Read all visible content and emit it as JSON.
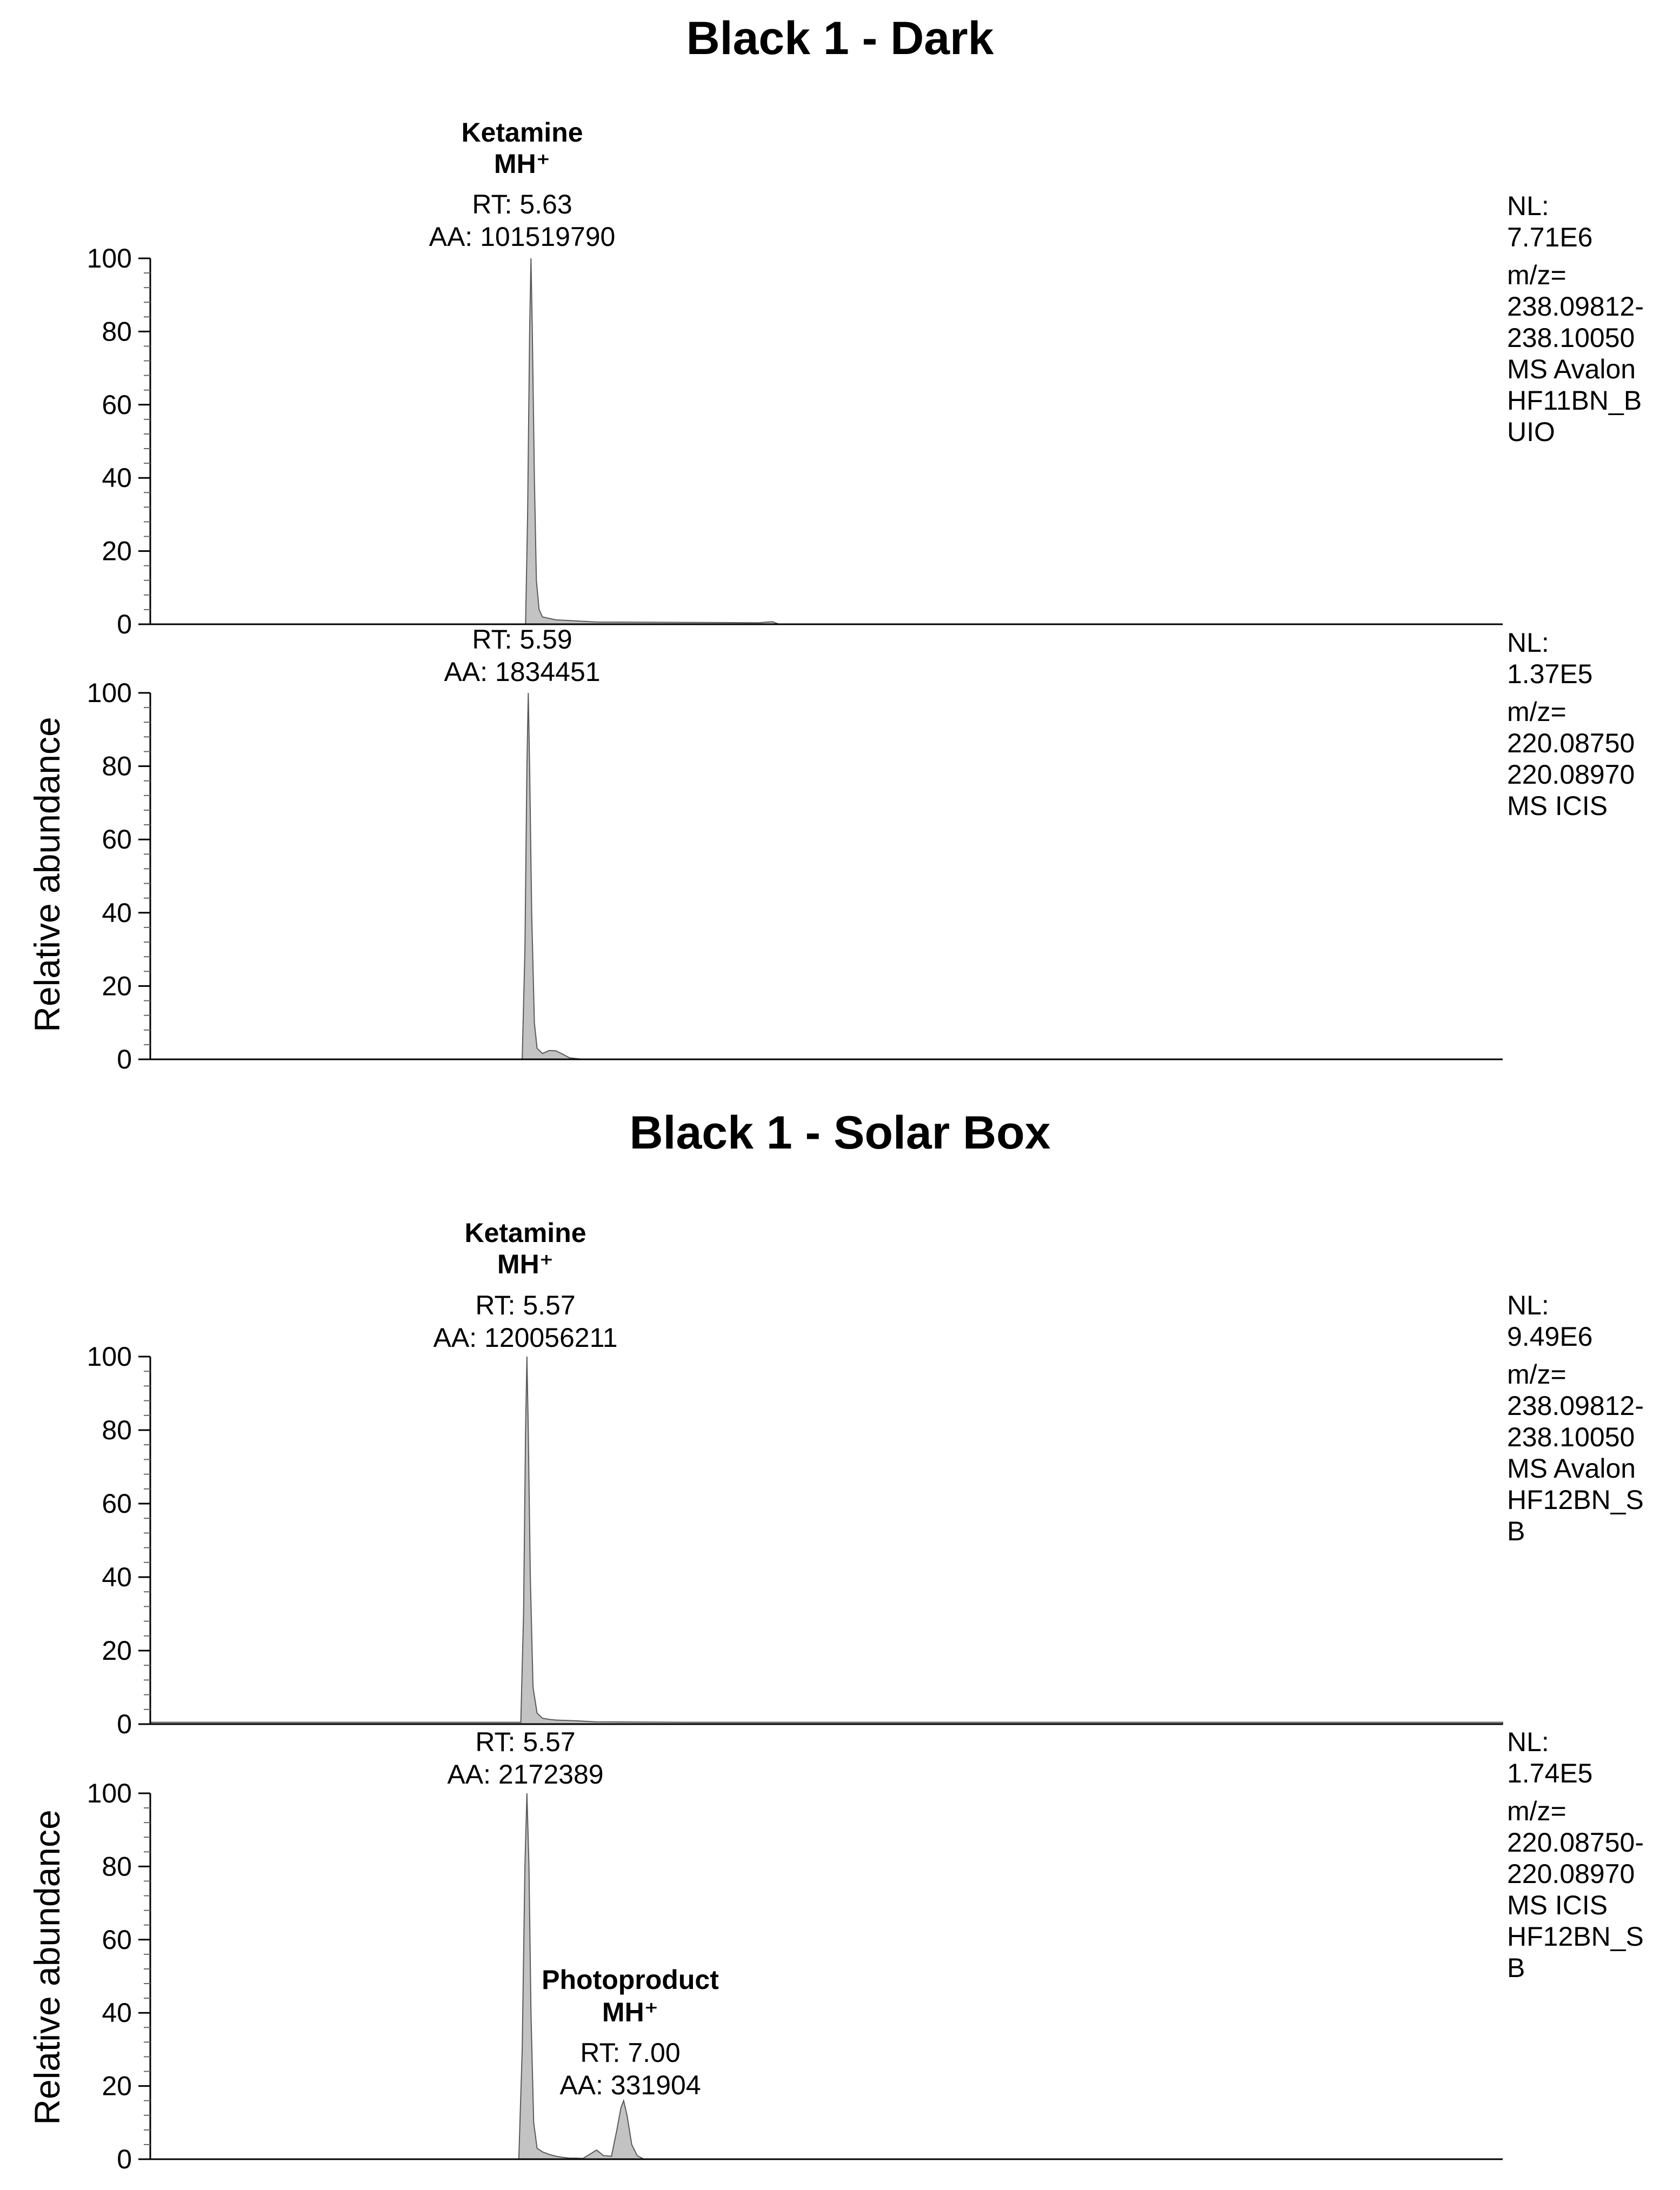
{
  "panel_groups": [
    {
      "title": "Black 1 - Dark",
      "panels": [
        {
          "annotation": {
            "compound": "Ketamine",
            "ion": "MH⁺",
            "rt": "RT: 5.63",
            "aa": "AA: 101519790"
          },
          "info_lines": [
            "NL:",
            "7.71E6",
            "m/z=",
            "238.09812-",
            "238.10050",
            "MS  Avalon",
            "HF11BN_B",
            "UIO"
          ],
          "ylabel": ""
        },
        {
          "annotation": {
            "compound": "",
            "ion": "",
            "rt": "RT: 5.59",
            "aa": "AA: 1834451"
          },
          "info_lines": [
            "NL:",
            "1.37E5",
            "m/z=",
            "220.08750",
            "220.08970",
            "MS  ICIS"
          ],
          "ylabel": "Relative abundance"
        }
      ]
    },
    {
      "title": "Black 1 - Solar Box",
      "panels": [
        {
          "annotation": {
            "compound": "Ketamine",
            "ion": "MH⁺",
            "rt": "RT: 5.57",
            "aa": "AA: 120056211"
          },
          "info_lines": [
            "NL:",
            "9.49E6",
            "m/z=",
            "238.09812-",
            "238.10050",
            "MS  Avalon",
            "HF12BN_S",
            "B"
          ],
          "ylabel": ""
        },
        {
          "annotation": {
            "compound": "",
            "ion": "",
            "rt": "RT: 5.57",
            "aa": "AA: 2172389"
          },
          "annotation2": {
            "compound": "Photoproduct",
            "ion": "MH⁺",
            "rt": "RT: 7.00",
            "aa": "AA: 331904"
          },
          "info_lines": [
            "NL:",
            "1.74E5",
            "m/z=",
            "220.08750-",
            "220.08970",
            "MS  ICIS",
            "HF12BN_S",
            "B"
          ],
          "ylabel": "Relative abundance"
        }
      ]
    }
  ],
  "chart_data": [
    {
      "type": "line",
      "title": "Black 1 - Dark",
      "ylabel": "",
      "xlabel": "",
      "ylim": [
        0,
        100
      ],
      "yticks": [
        0,
        20,
        40,
        60,
        80,
        100
      ],
      "fill_color": "#c3c3c3",
      "series": [
        {
          "x": [
            0,
            5.55,
            5.58,
            5.61,
            5.63,
            5.65,
            5.68,
            5.71,
            5.75,
            5.8,
            5.9,
            6.0,
            6.3,
            6.6,
            8.0,
            9.0,
            9.2,
            9.3,
            20.0
          ],
          "y": [
            0,
            0,
            30,
            80,
            100,
            80,
            40,
            12,
            4,
            2,
            1.6,
            1.2,
            0.9,
            0.6,
            0.5,
            0.4,
            0.7,
            0,
            0
          ]
        }
      ]
    },
    {
      "type": "line",
      "ylabel": "Relative abundance",
      "xlabel": "",
      "ylim": [
        0,
        100
      ],
      "yticks": [
        0,
        20,
        40,
        60,
        80,
        100
      ],
      "fill_color": "#c3c3c3",
      "series": [
        {
          "x": [
            0,
            5.5,
            5.54,
            5.57,
            5.59,
            5.61,
            5.64,
            5.68,
            5.72,
            5.8,
            5.9,
            6.0,
            6.1,
            6.2,
            6.4,
            20.0
          ],
          "y": [
            0,
            0,
            30,
            80,
            100,
            80,
            40,
            10,
            3,
            1.6,
            2.4,
            2.3,
            1.4,
            0.4,
            0,
            0
          ]
        }
      ]
    },
    {
      "type": "line",
      "title": "Black 1 - Solar Box",
      "ylabel": "",
      "xlabel": "",
      "ylim": [
        0,
        100
      ],
      "yticks": [
        0,
        20,
        40,
        60,
        80,
        100
      ],
      "fill_color": "#c3c3c3",
      "series": [
        {
          "x": [
            0,
            5.48,
            5.52,
            5.55,
            5.57,
            5.59,
            5.62,
            5.66,
            5.72,
            5.8,
            5.9,
            6.0,
            6.3,
            6.6,
            8.0,
            20.0
          ],
          "y": [
            0.5,
            0.5,
            30,
            80,
            100,
            80,
            40,
            10,
            3,
            1.6,
            1.3,
            1.1,
            0.9,
            0.6,
            0.5,
            0.5
          ]
        }
      ]
    },
    {
      "type": "line",
      "ylabel": "Relative abundance",
      "xlabel": "",
      "ylim": [
        0,
        100
      ],
      "yticks": [
        0,
        20,
        40,
        60,
        80,
        100
      ],
      "fill_color": "#c3c3c3",
      "series": [
        {
          "x": [
            0,
            5.45,
            5.5,
            5.54,
            5.57,
            5.6,
            5.63,
            5.67,
            5.72,
            5.8,
            5.9,
            6.0,
            6.1,
            6.2,
            6.3,
            6.4,
            6.6,
            6.7,
            6.82,
            6.9,
            6.96,
            7.0,
            7.05,
            7.12,
            7.2,
            7.3,
            20.0
          ],
          "y": [
            0,
            0,
            30,
            80,
            100,
            80,
            40,
            10,
            3,
            2.0,
            1.3,
            0.8,
            0.5,
            0.3,
            0.3,
            0.2,
            2.5,
            1.0,
            0.8,
            8,
            14,
            16,
            12,
            4,
            1,
            0,
            0
          ]
        }
      ]
    }
  ]
}
